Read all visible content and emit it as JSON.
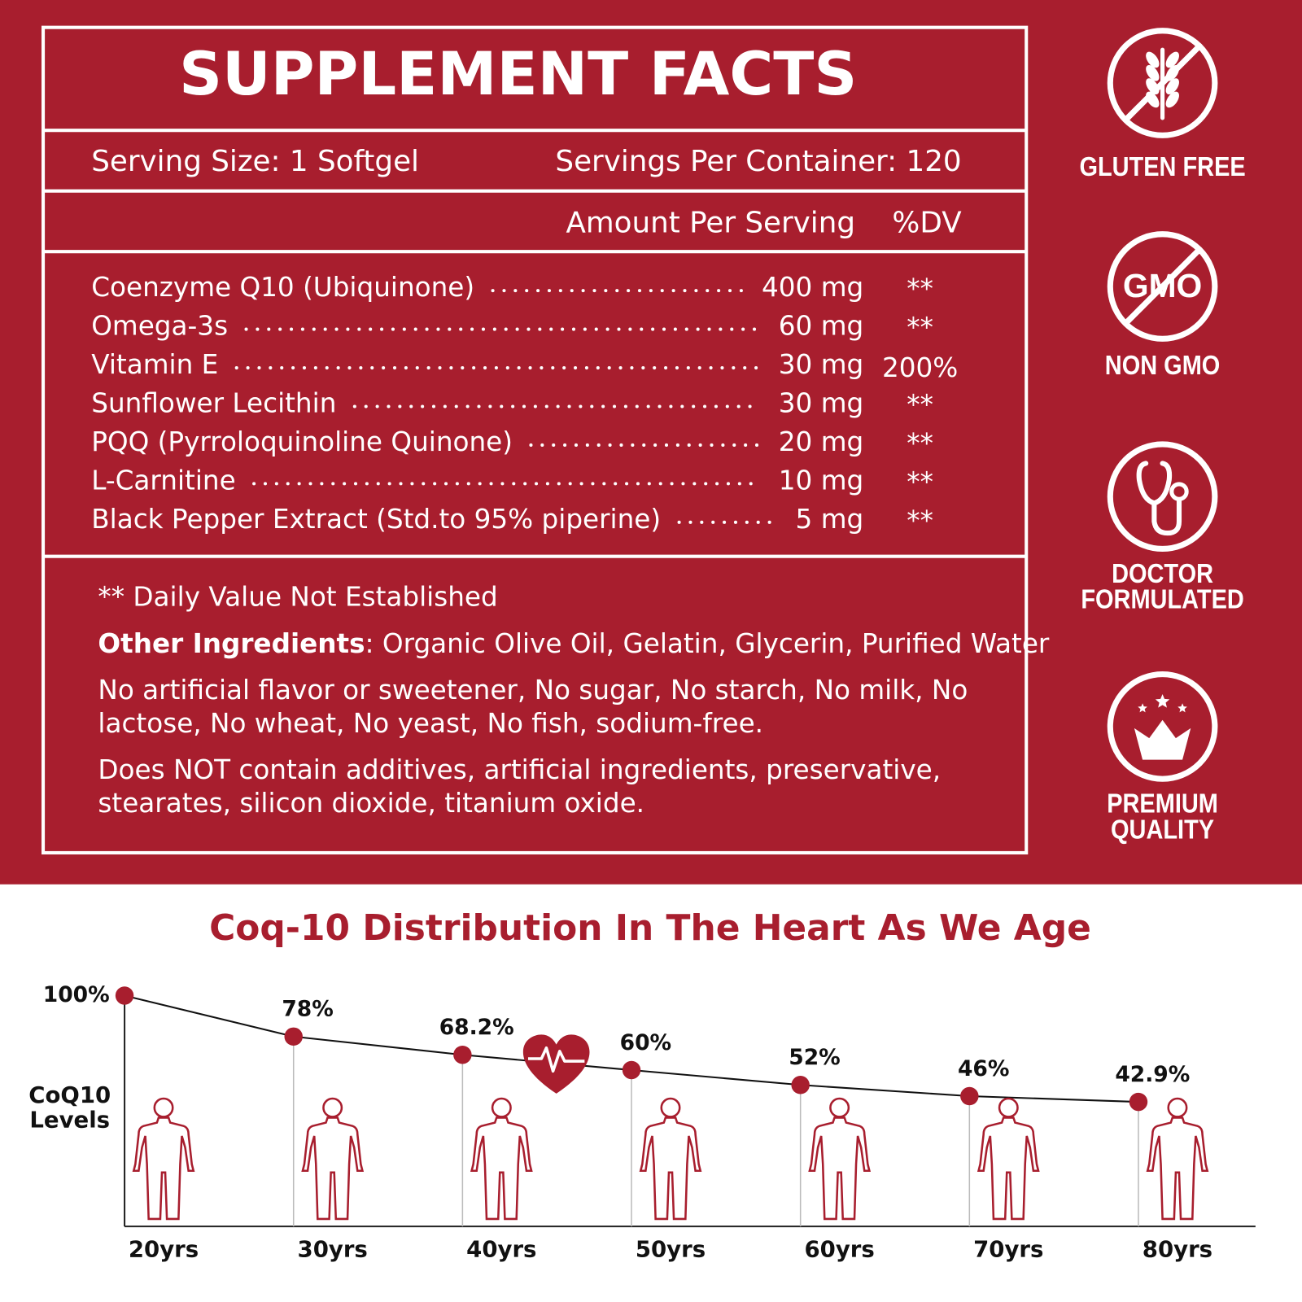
{
  "facts": {
    "title": "SUPPLEMENT FACTS",
    "serving_size": "Serving Size: 1 Softgel",
    "servings_per_container": "Servings Per Container: 120",
    "amount_header": "Amount Per Serving",
    "dv_header": "%DV",
    "ingredients": [
      {
        "name": "Coenzyme Q10 (Ubiquinone)",
        "amount": "400 mg",
        "dv": "**"
      },
      {
        "name": "Omega-3s",
        "amount": "60 mg",
        "dv": "**"
      },
      {
        "name": "Vitamin E",
        "amount": "30 mg",
        "dv": "200%"
      },
      {
        "name": "Sunflower Lecithin",
        "amount": "30 mg",
        "dv": "**"
      },
      {
        "name": "PQQ (Pyrroloquinoline Quinone)",
        "amount": "20 mg",
        "dv": "**"
      },
      {
        "name": "L-Carnitine",
        "amount": "10 mg",
        "dv": "**"
      },
      {
        "name": "Black Pepper Extract (Std.to 95% piperine)",
        "amount": "5 mg",
        "dv": "**"
      }
    ],
    "note": "** Daily Value Not Established",
    "other_label": "Other Ingredients",
    "other_text": ": Organic Olive Oil, Gelatin, Glycerin, Purified Water",
    "paragraphs": [
      [
        "No artificial flavor or sweetener, No sugar, No starch, No milk, No",
        "lactose, No wheat, No yeast, No fish, sodium-free."
      ],
      [
        "Does NOT contain additives, artificial ingredients, preservative,",
        "stearates, silicon dioxide, titanium oxide."
      ]
    ]
  },
  "badges": [
    {
      "lines": [
        "GLUTEN FREE"
      ]
    },
    {
      "icon_text": "GMO",
      "lines": [
        "NON GMO"
      ]
    },
    {
      "lines": [
        "DOCTOR",
        "FORMULATED"
      ]
    },
    {
      "lines": [
        "PREMIUM",
        "QUALITY"
      ]
    }
  ],
  "chart_data": {
    "type": "line",
    "title": "Coq-10 Distribution In The Heart As We Age",
    "ylabel": "CoQ10 Levels",
    "categories": [
      "20yrs",
      "30yrs",
      "40yrs",
      "50yrs",
      "60yrs",
      "70yrs",
      "80yrs"
    ],
    "series": [
      {
        "name": "CoQ10 Levels",
        "color": "#a81e2e",
        "values": [
          100,
          78,
          68.2,
          60,
          52,
          46,
          42.9
        ],
        "value_labels": [
          "100%",
          "78%",
          "68.2%",
          "60%",
          "52%",
          "46%",
          "42.9%"
        ]
      }
    ],
    "ylim": [
      -24,
      100
    ]
  }
}
